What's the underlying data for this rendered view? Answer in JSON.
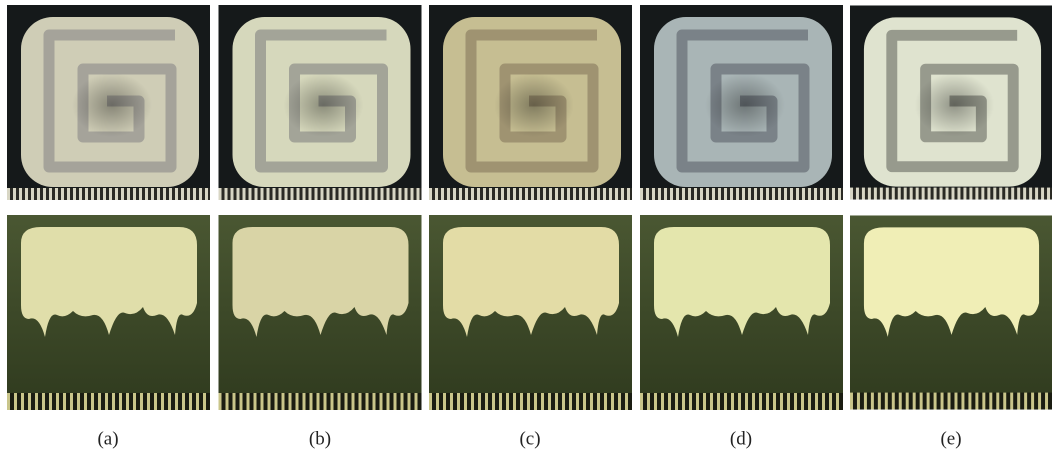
{
  "captions": [
    "(a)",
    "(b)",
    "(c)",
    "(d)",
    "(e)"
  ]
}
